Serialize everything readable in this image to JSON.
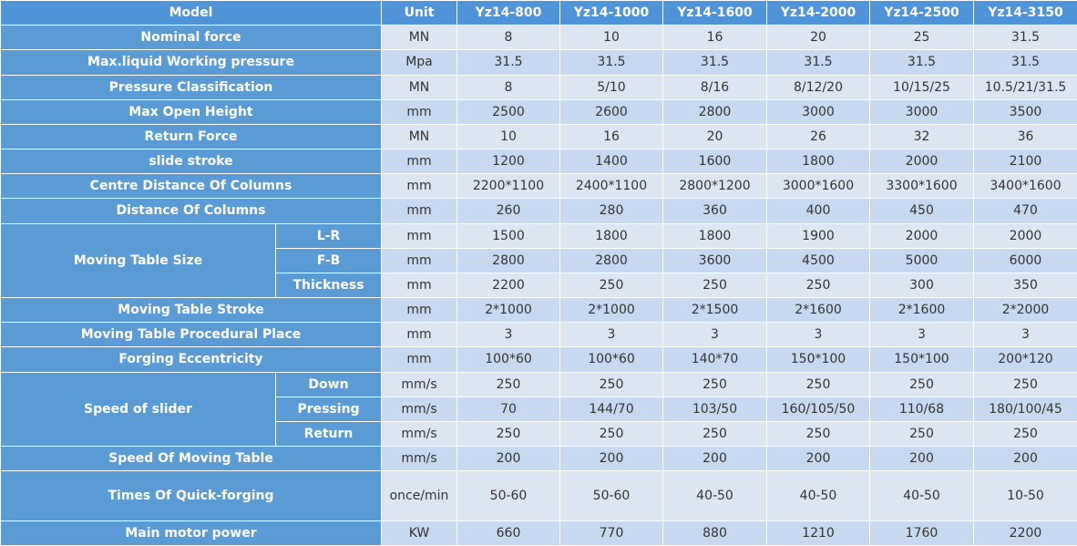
{
  "table": {
    "header": [
      "Model",
      "Unit",
      "Yz14-800",
      "Yz14-1000",
      "Yz14-1600",
      "Yz14-2000",
      "Yz14-2500",
      "Yz14-3150"
    ],
    "rows": [
      {
        "label": "Nominal force",
        "unit": "MN",
        "values": [
          "8",
          "10",
          "16",
          "20",
          "25",
          "31.5"
        ]
      },
      {
        "label": "Max.liquid Working pressure",
        "unit": "Mpa",
        "values": [
          "31.5",
          "31.5",
          "31.5",
          "31.5",
          "31.5",
          "31.5"
        ]
      },
      {
        "label": "Pressure Classification",
        "unit": "MN",
        "values": [
          "8",
          "5/10",
          "8/16",
          "8/12/20",
          "10/15/25",
          "10.5/21/31.5"
        ]
      },
      {
        "label": "Max Open Height",
        "unit": "mm",
        "values": [
          "2500",
          "2600",
          "2800",
          "3000",
          "3000",
          "3500"
        ]
      },
      {
        "label": "Return Force",
        "unit": "MN",
        "values": [
          "10",
          "16",
          "20",
          "26",
          "32",
          "36"
        ]
      },
      {
        "label": "slide stroke",
        "unit": "mm",
        "values": [
          "1200",
          "1400",
          "1600",
          "1800",
          "2000",
          "2100"
        ]
      },
      {
        "label": "Centre Distance Of Columns",
        "unit": "mm",
        "values": [
          "2200*1100",
          "2400*1100",
          "2800*1200",
          "3000*1600",
          "3300*1600",
          "3400*1600"
        ]
      },
      {
        "label": "Distance Of Columns",
        "unit": "mm",
        "values": [
          "260",
          "280",
          "360",
          "400",
          "450",
          "470"
        ]
      },
      {
        "label": "Moving Table Size",
        "subrows": [
          {
            "label": "L-R",
            "unit": "mm",
            "values": [
              "1500",
              "1800",
              "1800",
              "1900",
              "2000",
              "2000"
            ]
          },
          {
            "label": "F-B",
            "unit": "mm",
            "values": [
              "2800",
              "2800",
              "3600",
              "4500",
              "5000",
              "6000"
            ]
          },
          {
            "label": "Thickness",
            "unit": "mm",
            "values": [
              "2200",
              "250",
              "250",
              "250",
              "300",
              "350"
            ]
          }
        ]
      },
      {
        "label": "Moving Table Stroke",
        "unit": "mm",
        "values": [
          "2*1000",
          "2*1000",
          "2*1500",
          "2*1600",
          "2*1600",
          "2*2000"
        ]
      },
      {
        "label": "Moving Table Procedural Place",
        "unit": "mm",
        "values": [
          "3",
          "3",
          "3",
          "3",
          "3",
          "3"
        ]
      },
      {
        "label": "Forging Eccentricity",
        "unit": "mm",
        "values": [
          "100*60",
          "100*60",
          "140*70",
          "150*100",
          "150*100",
          "200*120"
        ]
      },
      {
        "label": "Speed of slider",
        "subrows": [
          {
            "label": "Down",
            "unit": "mm/s",
            "values": [
              "250",
              "250",
              "250",
              "250",
              "250",
              "250"
            ]
          },
          {
            "label": "Pressing",
            "unit": "mm/s",
            "values": [
              "70",
              "144/70",
              "103/50",
              "160/105/50",
              "110/68",
              "180/100/45"
            ]
          },
          {
            "label": "Return",
            "unit": "mm/s",
            "values": [
              "250",
              "250",
              "250",
              "250",
              "250",
              "250"
            ]
          }
        ]
      },
      {
        "label": "Speed Of Moving Table",
        "unit": "mm/s",
        "values": [
          "200",
          "200",
          "200",
          "200",
          "200",
          "200"
        ]
      },
      {
        "label": "Times Of Quick-forging",
        "unit": "once/min",
        "values": [
          "50-60",
          "50-60",
          "40-50",
          "40-50",
          "40-50",
          "10-50"
        ],
        "tall": true
      },
      {
        "label": "Main motor power",
        "unit": "KW",
        "values": [
          "660",
          "770",
          "880",
          "1210",
          "1760",
          "2200"
        ]
      }
    ]
  }
}
